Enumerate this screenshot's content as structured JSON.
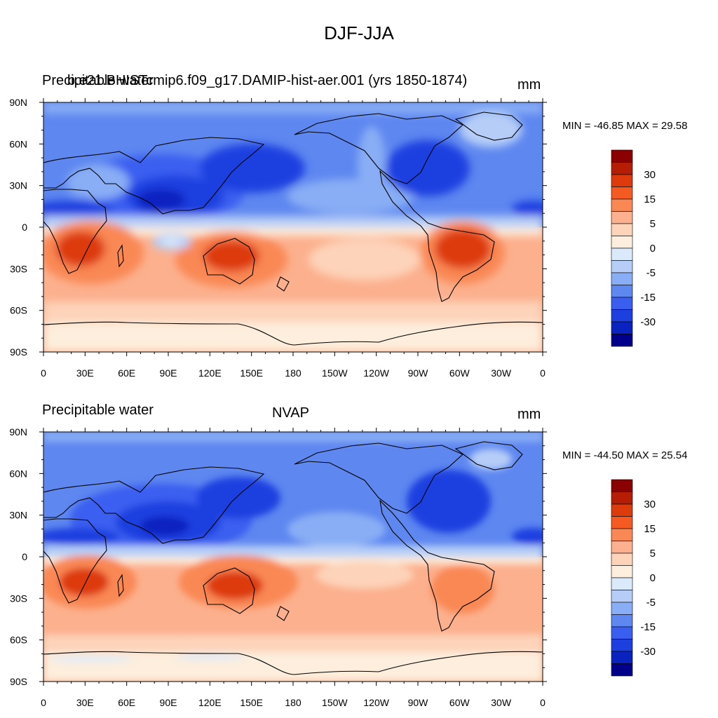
{
  "figure": {
    "title": "DJF-JJA"
  },
  "panels": [
    {
      "left_title": "Precipitable water",
      "center_title": "b.e21.BHISTcmip6.f09_g17.DAMIP-hist-aer.001 (yrs 1850-1874)",
      "units": "mm",
      "stats": "MIN = -46.85 MAX =  29.58"
    },
    {
      "left_title": "Precipitable water",
      "center_title": "NVAP",
      "units": "mm",
      "stats": "MIN = -44.50 MAX =  25.54"
    }
  ],
  "axes": {
    "lat_labels": [
      "90N",
      "60N",
      "30N",
      "0",
      "30S",
      "60S",
      "90S"
    ],
    "lon_labels": [
      "0",
      "30E",
      "60E",
      "90E",
      "120E",
      "150E",
      "180",
      "150W",
      "120W",
      "90W",
      "60W",
      "30W",
      "0"
    ]
  },
  "colorbar": {
    "labels": [
      "30",
      "15",
      "5",
      "0",
      "-5",
      "-15",
      "-30"
    ],
    "colors": [
      "#8b0000",
      "#b51d05",
      "#dd3b0c",
      "#f45a22",
      "#f98855",
      "#fcb08d",
      "#fdd3b9",
      "#fdeedd",
      "#dbeafb",
      "#b6cef7",
      "#89aef5",
      "#5e87f0",
      "#3a5ff0",
      "#1e3fe0",
      "#0a23c0",
      "#00008b"
    ]
  }
}
